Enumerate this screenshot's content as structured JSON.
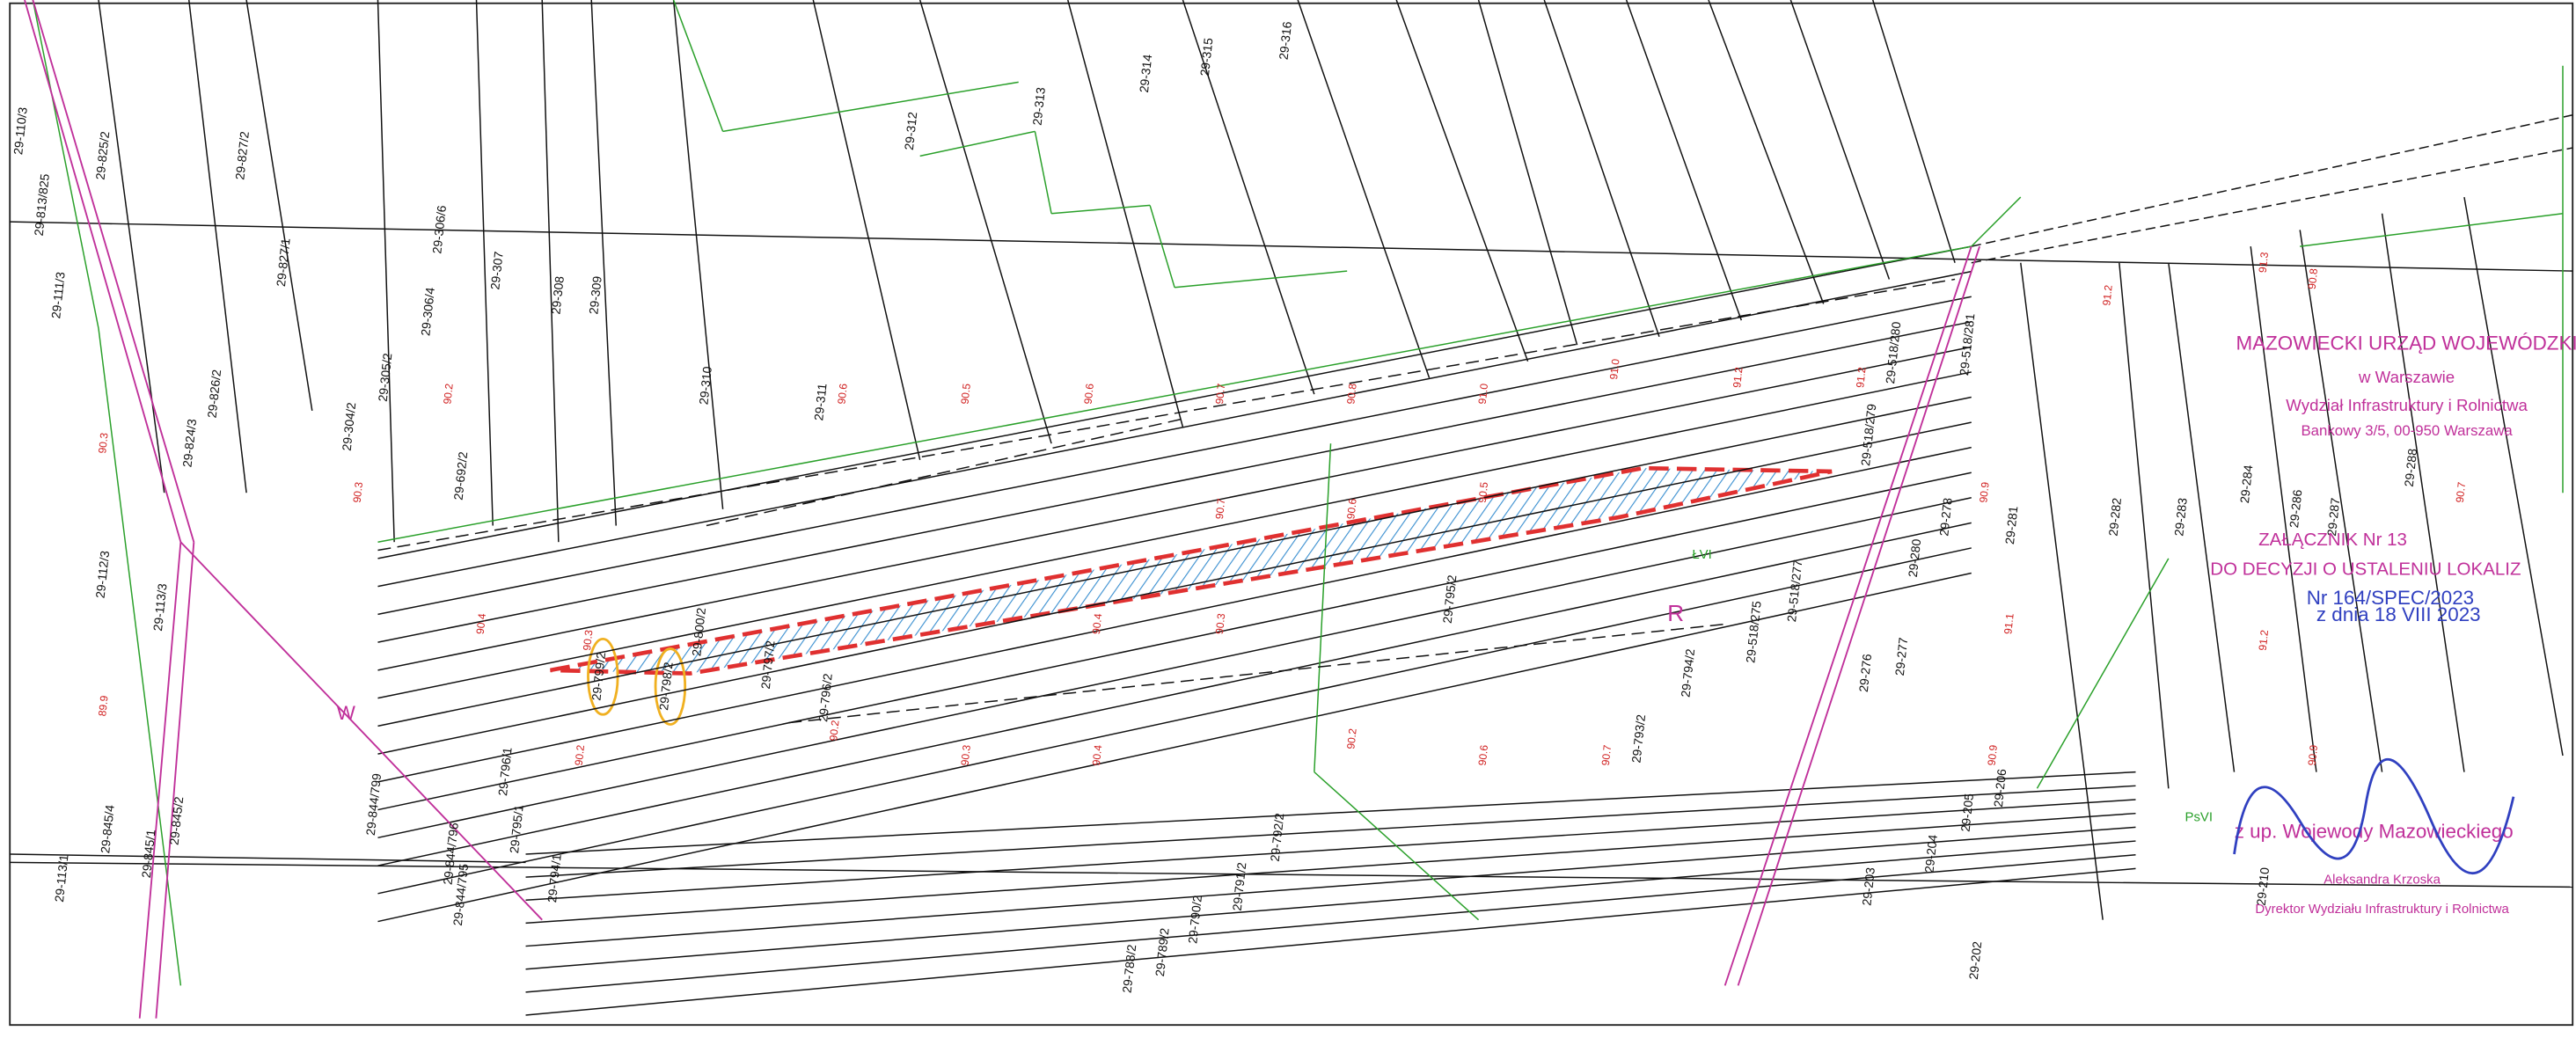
{
  "parcels": [
    "29-110/3",
    "29-813/825",
    "29-825/2",
    "29-827/2",
    "29-111/3",
    "29-824/3",
    "29-826/2",
    "29-827/1",
    "29-306/4",
    "29-306/6",
    "29-307",
    "29-308",
    "29-309",
    "29-305/2",
    "29-304/2",
    "29-310",
    "29-311",
    "29-312",
    "29-313",
    "29-314",
    "29-315",
    "29-316",
    "29-692/2",
    "29-800/2",
    "29-797/2",
    "29-796/2",
    "29-795/2",
    "29-794/2",
    "29-793/2",
    "29-792/2",
    "29-791/2",
    "29-790/2",
    "29-789/2",
    "29-788/2",
    "29-518/280",
    "29-518/279",
    "29-518/277",
    "29-518/275",
    "29-280",
    "29-278",
    "29-277",
    "29-276",
    "29-281",
    "29-282",
    "29-283",
    "29-287",
    "29-288",
    "29-203",
    "29-204",
    "29-205",
    "29-206",
    "29-202",
    "29-210",
    "29-844/799",
    "29-844/796",
    "29-844/795",
    "29-796/1",
    "29-795/1",
    "29-794/1",
    "29-113/3",
    "29-112/3",
    "29-845/4",
    "29-845/1",
    "29-845/2",
    "29-113/1",
    "29-799/2",
    "29-798/2",
    "29-518/281",
    "29-284",
    "29-286"
  ],
  "elevations": [
    "90.3",
    "90.2",
    "90.6",
    "90.5",
    "90.6",
    "90.7",
    "90.8",
    "91.0",
    "91.2",
    "91.2",
    "90.4",
    "90.3",
    "90.7",
    "90.6",
    "90.5",
    "90.9",
    "90.8",
    "90.7",
    "90.4",
    "90.3",
    "90.2",
    "90.3",
    "90.2",
    "90.4",
    "90.6",
    "90.7",
    "91.0",
    "91.1",
    "91.2",
    "91.3",
    "90.9",
    "91.2",
    "90.9",
    "89.9",
    "90.3",
    "90.2"
  ],
  "land_class": [
    "R",
    "ŁVI",
    "PsVI",
    "W"
  ],
  "stamp": {
    "office": [
      "MAZOWIECKI URZĄD WOJEWÓDZKI",
      "w Warszawie",
      "Wydział Infrastruktury i Rolnictwa",
      "Bankowy 3/5, 00-950 Warszawa"
    ],
    "attachment": [
      "ZAŁĄCZNIK Nr 13",
      "DO DECYZJI O USTALENIU LOKALIZ",
      "Nr 164/SPEC/2023",
      "z dnia 18 VIII 2023"
    ],
    "signature": [
      "z up. Wojewody Mazowieckiego",
      "Aleksandra Krzoska",
      "Dyrektor Wydziału Infrastruktury i Rolnictwa"
    ]
  }
}
